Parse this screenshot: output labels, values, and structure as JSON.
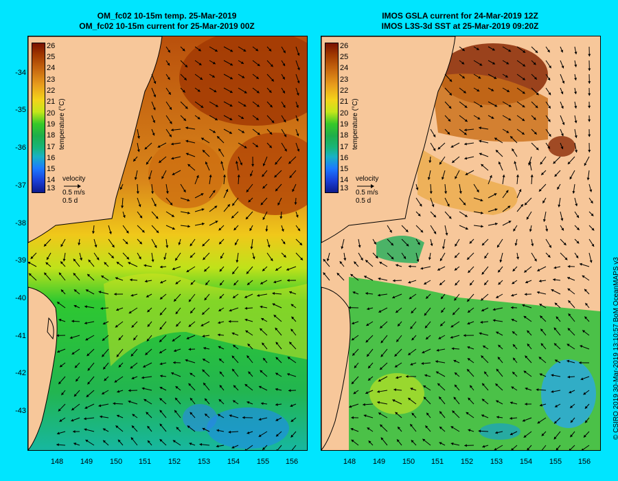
{
  "left_title": {
    "line1": "OM_fc02 10-15m temp. 25-Mar-2019",
    "line2": "OM_fc02 10-15m current for 25-Mar-2019 00Z"
  },
  "right_title": {
    "line1": "IMOS GSLA current for 24-Mar-2019 12Z",
    "line2": "IMOS L3S-3d SST at 25-Mar-2019 09:20Z"
  },
  "colorbar": {
    "ticks": [
      "26",
      "25",
      "24",
      "23",
      "22",
      "21",
      "20",
      "19",
      "18",
      "17",
      "16",
      "15",
      "14",
      "13"
    ],
    "unit": "temperature (°C)"
  },
  "velocity_key": {
    "label": "velocity",
    "speed": "0.5 m/s",
    "time": "0.5 d"
  },
  "lat_labels": [
    "-34",
    "-35",
    "-36",
    "-37",
    "-38",
    "-39",
    "-40",
    "-41",
    "-42",
    "-43"
  ],
  "lon_labels": [
    "148",
    "149",
    "150",
    "151",
    "152",
    "153",
    "154",
    "155",
    "156"
  ],
  "credit": "© CSIRO 2019   30-Mar-2019 13:10:57 BoM OceanMAPS v3",
  "colors": {
    "background": "#00e5ff",
    "land": "#f7c79a",
    "warm": "#c4610e",
    "green": "#22c33a"
  }
}
